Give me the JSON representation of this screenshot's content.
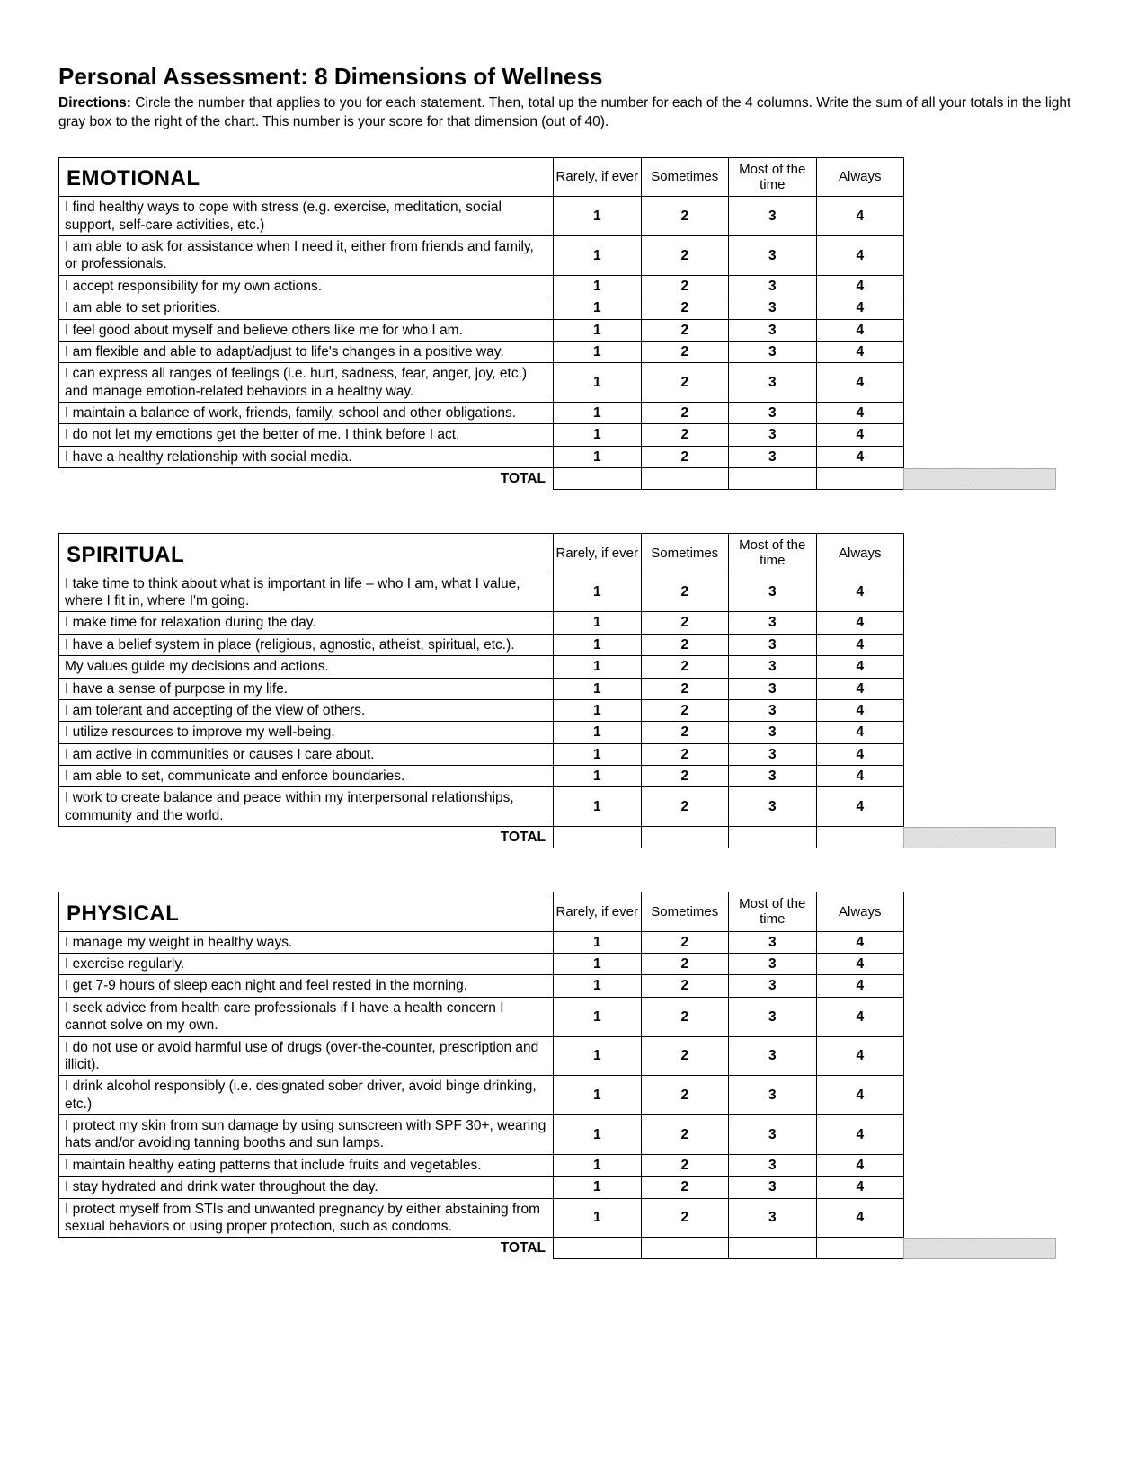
{
  "page": {
    "title": "Personal Assessment: 8 Dimensions of Wellness",
    "directions_label": "Directions:",
    "directions_text": " Circle the number that applies to you for each statement. Then, total up the number for each of the 4 columns. Write the sum of all your totals in the light gray box to the right of the chart. This number is your score for that dimension (out of 40)."
  },
  "columns": {
    "c1": "Rarely, if ever",
    "c2": "Sometimes",
    "c3": "Most of the time",
    "c4": "Always"
  },
  "ratings": {
    "r1": "1",
    "r2": "2",
    "r3": "3",
    "r4": "4"
  },
  "total_label": "TOTAL",
  "sections": [
    {
      "title": "EMOTIONAL",
      "statements": [
        "I find healthy ways to cope with stress (e.g. exercise, meditation, social support, self-care activities, etc.)",
        "I am able to ask for assistance when I need it, either from friends and family, or professionals.",
        "I accept responsibility for my own actions.",
        "I am able to set priorities.",
        "I feel good about myself and believe others like me for who I am.",
        "I am flexible and able to adapt/adjust to life's changes in a positive way.",
        "I can express all ranges of feelings (i.e. hurt, sadness, fear, anger, joy, etc.) and manage emotion-related behaviors in a healthy way.",
        "I maintain a balance of work, friends, family, school and other obligations.",
        "I do not let my emotions get the better of me. I think before I act.",
        "I have a healthy relationship with social media."
      ]
    },
    {
      "title": "SPIRITUAL",
      "statements": [
        "I take time to think about what is important in life – who I am, what I value, where I fit in, where I'm going.",
        "I make time for relaxation during the day.",
        "I have a belief system in place (religious, agnostic, atheist, spiritual, etc.).",
        "My values guide my decisions and actions.",
        "I have a sense of purpose in my life.",
        "I am tolerant and accepting of the view of others.",
        "I utilize resources to improve my well-being.",
        "I am active in communities or causes I care about.",
        "I am able to set, communicate and enforce boundaries.",
        "I work to create balance and peace within my interpersonal relationships, community and the world."
      ]
    },
    {
      "title": "PHYSICAL",
      "statements": [
        "I manage my weight in healthy ways.",
        "I exercise regularly.",
        "I get 7-9 hours of sleep each night and feel rested in the morning.",
        "I seek advice from health care professionals if I have a health concern I cannot solve on my own.",
        "I do not use or avoid harmful use of drugs (over-the-counter, prescription and illicit).",
        "I drink alcohol responsibly (i.e. designated sober driver, avoid binge drinking, etc.)",
        "I protect my skin from sun damage by using sunscreen with SPF 30+, wearing hats and/or avoiding tanning booths and sun lamps.",
        "I maintain healthy eating patterns that include fruits and vegetables.",
        "I stay hydrated and drink water throughout the day.",
        "I protect myself from STIs and unwanted pregnancy by either abstaining from sexual behaviors or using proper protection, such as condoms."
      ]
    }
  ]
}
